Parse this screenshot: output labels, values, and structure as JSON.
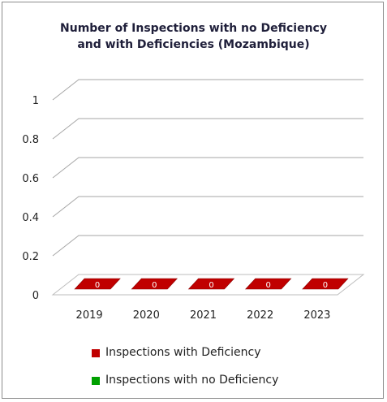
{
  "chart_data": {
    "type": "bar",
    "title_lines": [
      "Number of Inspections with no Deficiency",
      "and with Deficiencies (Mozambique)"
    ],
    "categories": [
      "2019",
      "2020",
      "2021",
      "2022",
      "2023"
    ],
    "series": [
      {
        "name": "Inspections with Deficiency",
        "values": [
          0,
          0,
          0,
          0,
          0
        ],
        "color": "#c00000"
      },
      {
        "name": "Inspections with no Deficiency",
        "values": [
          0,
          0,
          0,
          0,
          0
        ],
        "color": "#00a000"
      }
    ],
    "y_ticks": [
      "0",
      "0.2",
      "0.4",
      "0.6",
      "0.8",
      "1"
    ],
    "ylim": [
      0,
      1
    ],
    "grid": true,
    "style": "3d",
    "legend_position": "bottom"
  }
}
